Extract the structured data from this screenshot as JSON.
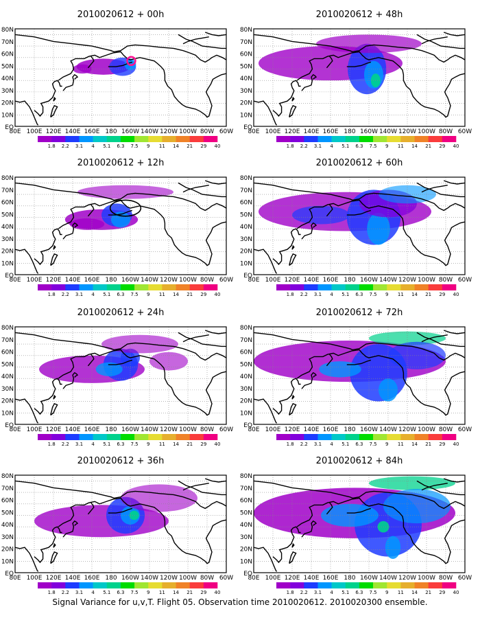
{
  "caption": "Signal Variance for u,v,T. Flight 05. Observation time 2010020612. 2010020300 ensemble.",
  "lat_labels": [
    "80N",
    "70N",
    "60N",
    "50N",
    "40N",
    "30N",
    "20N",
    "10N",
    "EQ"
  ],
  "lon_labels": [
    "80E",
    "100E",
    "120E",
    "140E",
    "160E",
    "180",
    "160W",
    "140W",
    "120W",
    "100W",
    "80W",
    "60W"
  ],
  "colorbar": {
    "levels": [
      "1.8",
      "2.2",
      "3.1",
      "4",
      "5.1",
      "6.3",
      "7.5",
      "9",
      "11",
      "14",
      "21",
      "29",
      "40"
    ],
    "colors": [
      "#a000c8",
      "#8200dc",
      "#1e3cff",
      "#0096ff",
      "#00c8c8",
      "#00d28c",
      "#00dc00",
      "#a0e632",
      "#e6dc32",
      "#e6af2d",
      "#f08228",
      "#fa3c3c",
      "#f00082"
    ]
  },
  "panels": [
    {
      "title": "2010020612 + 00h",
      "level": 0,
      "marker": true,
      "outline": false
    },
    {
      "title": "2010020612 + 12h",
      "level": 1,
      "marker": false,
      "outline": true
    },
    {
      "title": "2010020612 + 24h",
      "level": 2,
      "marker": false,
      "outline": false
    },
    {
      "title": "2010020612 + 36h",
      "level": 3,
      "marker": false,
      "outline": false
    },
    {
      "title": "2010020612 + 48h",
      "level": 2,
      "marker": false,
      "outline": false
    },
    {
      "title": "2010020612 + 60h",
      "level": 3,
      "marker": false,
      "outline": false
    },
    {
      "title": "2010020612 + 72h",
      "level": 4,
      "marker": false,
      "outline": false
    },
    {
      "title": "2010020612 + 84h",
      "level": 5,
      "marker": false,
      "outline": false
    }
  ]
}
